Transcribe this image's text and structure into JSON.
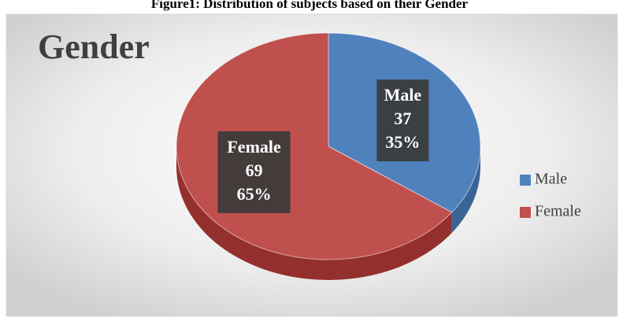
{
  "caption": "Figure1: Distribution of subjects based on their Gender",
  "chart_data": {
    "type": "pie3d",
    "title": "Gender",
    "categories": [
      "Male",
      "Female"
    ],
    "values": [
      37,
      69
    ],
    "percent_labels": [
      "35%",
      "65%"
    ],
    "colors": [
      "#4f81bd",
      "#c0504d"
    ],
    "side_colors": [
      "#3a6496",
      "#93302d"
    ],
    "legend": "right"
  }
}
